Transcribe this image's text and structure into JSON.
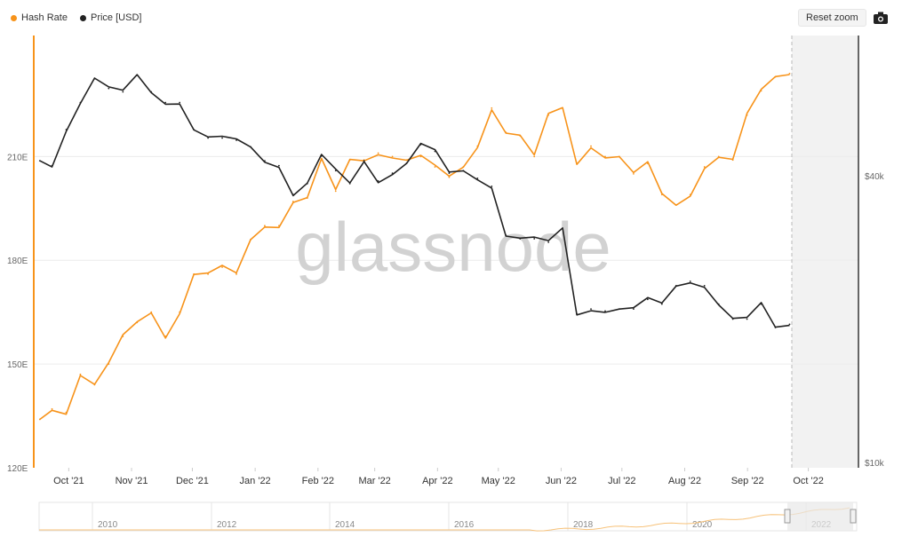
{
  "legend": [
    {
      "label": "Hash Rate",
      "color": "#f7931a"
    },
    {
      "label": "Price [USD]",
      "color": "#222222"
    }
  ],
  "toolbar": {
    "reset_zoom_label": "Reset zoom",
    "export_icon": "camera-icon"
  },
  "watermark": "glassnode",
  "chart_data": {
    "type": "line",
    "x_tick_labels": [
      "Oct '21",
      "Nov '21",
      "Dec '21",
      "Jan '22",
      "Feb '22",
      "Mar '22",
      "Apr '22",
      "May '22",
      "Jun '22",
      "Jul '22",
      "Aug '22",
      "Sep '22",
      "Oct '22"
    ],
    "y_left": {
      "tick_labels": [
        "120E",
        "150E",
        "180E",
        "210E"
      ],
      "ylim": [
        120,
        245
      ],
      "unit": "E"
    },
    "y_right": {
      "tick_labels": [
        "$10k",
        "$40k"
      ],
      "scale": "log"
    },
    "grid": true,
    "legend_position": "top-left",
    "series": [
      {
        "name": "Hash Rate",
        "axis": "left",
        "color": "#f7931a",
        "x": [
          "2021-09-22",
          "2021-09-28",
          "2021-10-05",
          "2021-10-12",
          "2021-10-19",
          "2021-10-26",
          "2021-11-02",
          "2021-11-09",
          "2021-11-16",
          "2021-11-23",
          "2021-11-30",
          "2021-12-07",
          "2021-12-14",
          "2021-12-21",
          "2021-12-28",
          "2022-01-04",
          "2022-01-11",
          "2022-01-18",
          "2022-01-25",
          "2022-02-01",
          "2022-02-08",
          "2022-02-15",
          "2022-02-22",
          "2022-03-01",
          "2022-03-08",
          "2022-03-15",
          "2022-03-22",
          "2022-03-29",
          "2022-04-05",
          "2022-04-12",
          "2022-04-19",
          "2022-04-26",
          "2022-05-03",
          "2022-05-10",
          "2022-05-17",
          "2022-05-24",
          "2022-05-31",
          "2022-06-07",
          "2022-06-14",
          "2022-06-21",
          "2022-06-28",
          "2022-07-05",
          "2022-07-12",
          "2022-07-19",
          "2022-07-26",
          "2022-08-02",
          "2022-08-09",
          "2022-08-16",
          "2022-08-23",
          "2022-08-30",
          "2022-09-06",
          "2022-09-13",
          "2022-09-20",
          "2022-09-27"
        ],
        "values": [
          134,
          137,
          136,
          147,
          144,
          150,
          158,
          162,
          165,
          158,
          165,
          176,
          176,
          178,
          176,
          186,
          190,
          190,
          197,
          198,
          209,
          200,
          209,
          209,
          211,
          210,
          209,
          210,
          207,
          204,
          207,
          213,
          224,
          217,
          216,
          210,
          222,
          224,
          208,
          213,
          210,
          210,
          205,
          208,
          199,
          196,
          199,
          207,
          210,
          209,
          222,
          229,
          233,
          234
        ]
      },
      {
        "name": "Price [USD]",
        "axis": "right",
        "color": "#222222",
        "x": [
          "2021-09-22",
          "2021-09-28",
          "2021-10-05",
          "2021-10-12",
          "2021-10-19",
          "2021-10-26",
          "2021-11-02",
          "2021-11-09",
          "2021-11-16",
          "2021-11-23",
          "2021-11-30",
          "2021-12-07",
          "2021-12-14",
          "2021-12-21",
          "2021-12-28",
          "2022-01-04",
          "2022-01-11",
          "2022-01-18",
          "2022-01-25",
          "2022-02-01",
          "2022-02-08",
          "2022-02-15",
          "2022-02-22",
          "2022-03-01",
          "2022-03-08",
          "2022-03-15",
          "2022-03-22",
          "2022-03-29",
          "2022-04-05",
          "2022-04-12",
          "2022-04-19",
          "2022-04-26",
          "2022-05-03",
          "2022-05-10",
          "2022-05-17",
          "2022-05-24",
          "2022-05-31",
          "2022-06-07",
          "2022-06-14",
          "2022-06-21",
          "2022-06-28",
          "2022-07-05",
          "2022-07-12",
          "2022-07-19",
          "2022-07-26",
          "2022-08-02",
          "2022-08-09",
          "2022-08-16",
          "2022-08-23",
          "2022-08-30",
          "2022-09-06",
          "2022-09-13",
          "2022-09-20",
          "2022-09-27"
        ],
        "values": [
          43000,
          42000,
          50000,
          57000,
          64000,
          61000,
          60000,
          65000,
          60000,
          57000,
          57000,
          50000,
          48000,
          48000,
          47500,
          46000,
          43000,
          42000,
          36500,
          38500,
          44000,
          41000,
          38500,
          43000,
          39000,
          40500,
          42500,
          46500,
          45000,
          40500,
          41000,
          39500,
          38000,
          30000,
          29500,
          29500,
          29000,
          31000,
          20500,
          21000,
          20800,
          21000,
          21000,
          22000,
          21500,
          23500,
          24000,
          23500,
          21500,
          20000,
          20000,
          21500,
          19200,
          19500
        ]
      }
    ]
  },
  "navigator": {
    "year_labels": [
      "2010",
      "2012",
      "2014",
      "2016",
      "2018",
      "2020",
      "2022"
    ]
  }
}
